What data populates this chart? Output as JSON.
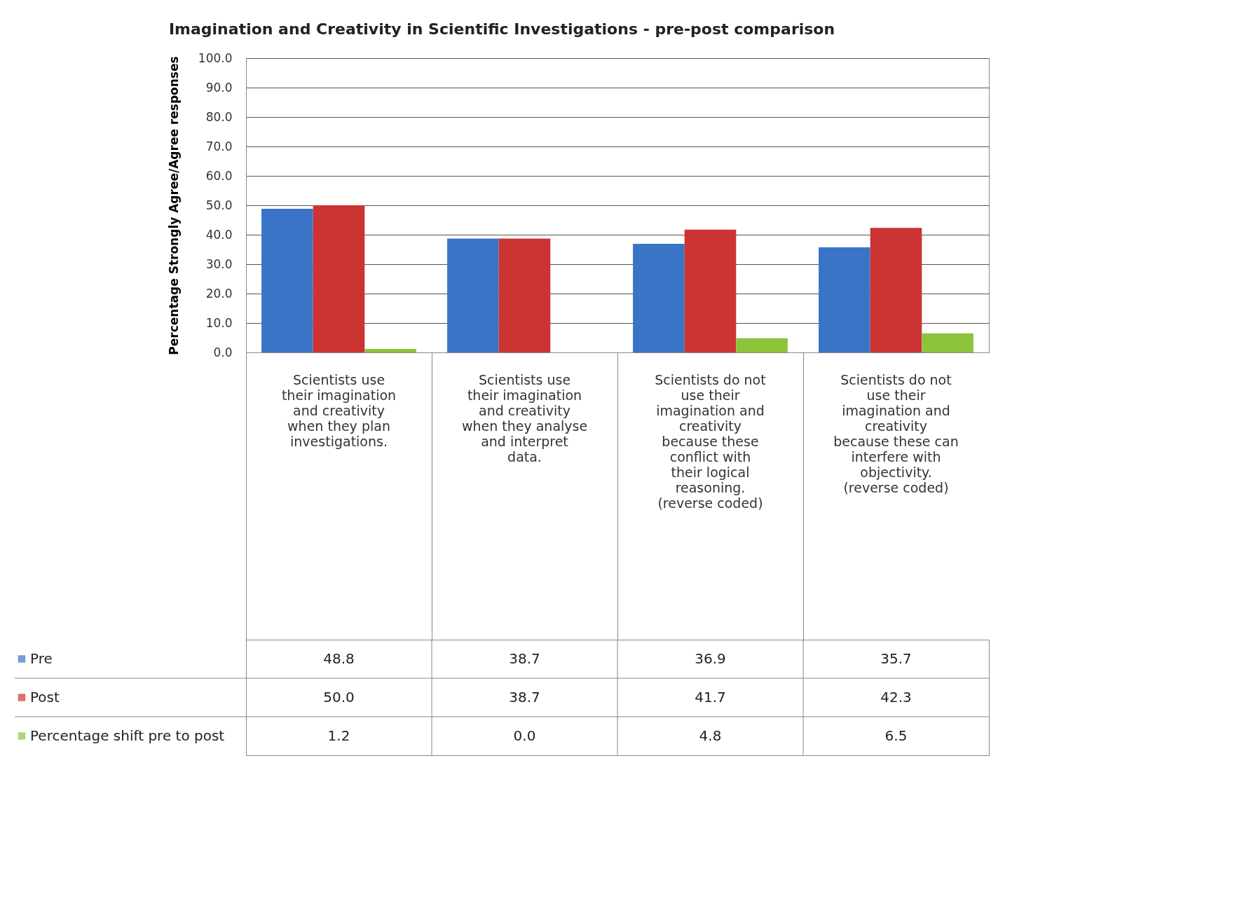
{
  "chart_data": {
    "type": "bar",
    "title": "Imagination and Creativity in Scientific Investigations - pre-post comparison",
    "ylabel": "Percentage Strongly Agree/Agree responses",
    "categories": [
      "Scientists use their imagination and creativity when they plan investigations.",
      "Scientists use their imagination and creativity when they analyse and interpret data.",
      "Scientists do not use their imagination and creativity because these conflict with their logical reasoning. (reverse coded)",
      "Scientists do not use their imagination and creativity because these can interfere with objectivity. (reverse coded)"
    ],
    "series": [
      {
        "name": "Pre",
        "color": "#3a74c6",
        "values": [
          48.8,
          38.7,
          36.9,
          35.7
        ],
        "value_labels": [
          "48.8",
          "38.7",
          "36.9",
          "35.7"
        ]
      },
      {
        "name": "Post",
        "color": "#cc3333",
        "values": [
          50.0,
          38.7,
          41.7,
          42.3
        ],
        "value_labels": [
          "50.0",
          "38.7",
          "41.7",
          "42.3"
        ]
      },
      {
        "name": "Percentage shift pre to post",
        "color": "#8cc43c",
        "values": [
          1.2,
          0.0,
          4.8,
          6.5
        ],
        "value_labels": [
          "1.2",
          "0.0",
          "4.8",
          "6.5"
        ]
      }
    ],
    "ylim": [
      0,
      100
    ],
    "yticks": [
      {
        "value": 0,
        "label": "0.0"
      },
      {
        "value": 10,
        "label": "10.0"
      },
      {
        "value": 20,
        "label": "20.0"
      },
      {
        "value": 30,
        "label": "30.0"
      },
      {
        "value": 40,
        "label": "40.0"
      },
      {
        "value": 50,
        "label": "50.0"
      },
      {
        "value": 60,
        "label": "60.0"
      },
      {
        "value": 70,
        "label": "70.0"
      },
      {
        "value": 80,
        "label": "80.0"
      },
      {
        "value": 90,
        "label": "90.0"
      },
      {
        "value": 100,
        "label": "100.0"
      }
    ],
    "grid": "y",
    "legend": "bottom left"
  }
}
